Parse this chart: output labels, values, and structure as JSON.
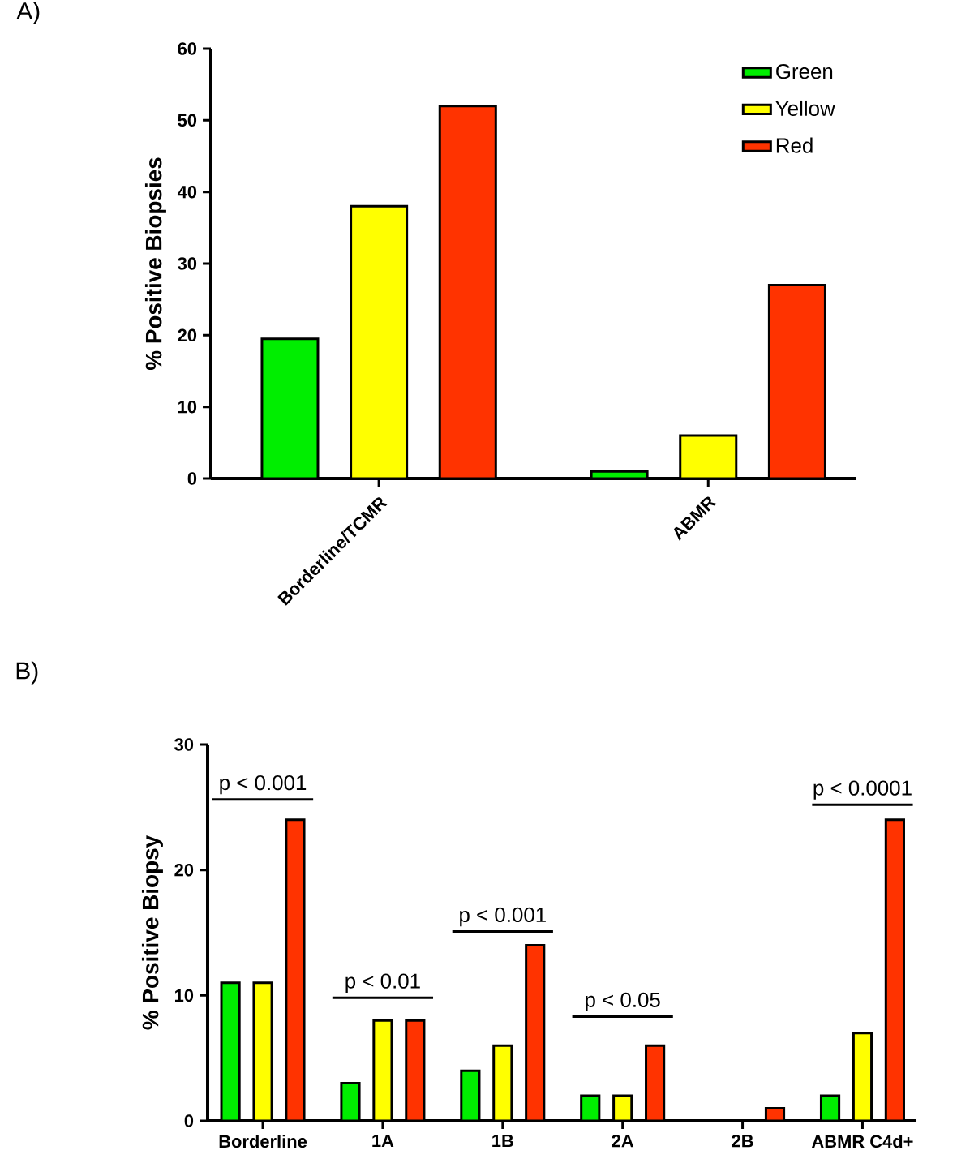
{
  "chart_data": [
    {
      "type": "bar",
      "title": "A)",
      "ylabel": "% Positive Biopsies",
      "categories": [
        "Borderline/TCMR",
        "ABMR"
      ],
      "series": [
        {
          "name": "Green",
          "color": "#00ee00",
          "values": [
            19.5,
            1
          ]
        },
        {
          "name": "Yellow",
          "color": "#ffff00",
          "values": [
            38,
            6
          ]
        },
        {
          "name": "Red",
          "color": "#ff3300",
          "values": [
            52,
            27
          ]
        }
      ],
      "ylim": [
        0,
        60
      ],
      "yticks": [
        0,
        10,
        20,
        30,
        40,
        50,
        60
      ],
      "legend": "top right"
    },
    {
      "type": "bar",
      "title": "B)",
      "ylabel": "% Positive Biopsy",
      "categories": [
        "Borderline",
        "1A",
        "1B",
        "2A",
        "2B",
        "ABMR C4d+"
      ],
      "series": [
        {
          "color": "#00ee00",
          "values": [
            11,
            3,
            4,
            2,
            null,
            2
          ]
        },
        {
          "color": "#ffff00",
          "values": [
            11,
            8,
            6,
            2,
            null,
            7
          ]
        },
        {
          "color": "#ff3300",
          "values": [
            24,
            8,
            14,
            6,
            1,
            24
          ]
        }
      ],
      "ylim": [
        0,
        30
      ],
      "yticks": [
        0,
        10,
        20,
        30
      ],
      "annotations": [
        "p < 0.001",
        "p < 0.01",
        "p < 0.001",
        "p < 0.05",
        "p < 0.0001"
      ]
    }
  ]
}
